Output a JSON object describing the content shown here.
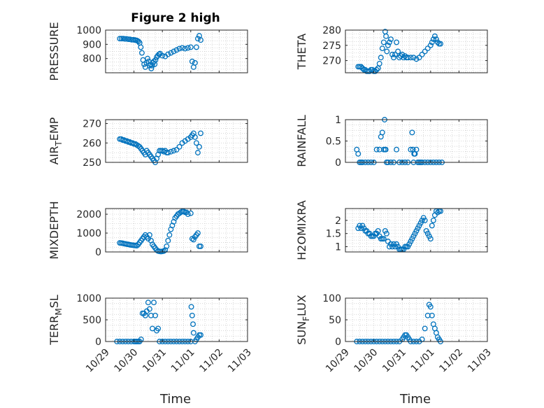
{
  "title": "Figure 2 high",
  "xlabel": "Time",
  "x_tick_labels": [
    "10/29",
    "10/30",
    "10/31",
    "11/01",
    "11/02",
    "11/03"
  ],
  "colors": {
    "marker": "#0072bd",
    "axis": "#262626",
    "grid": "#c8c8c8"
  },
  "chart_data": [
    {
      "type": "scatter",
      "ylabel": "PRESSURE",
      "ylim": [
        700,
        1000
      ],
      "yticks": [
        800,
        900,
        1000
      ],
      "ytick_labels": [
        "800",
        "900",
        "1000"
      ],
      "x": [
        0.5,
        0.56,
        0.62,
        0.68,
        0.74,
        0.8,
        0.86,
        0.92,
        0.98,
        1.04,
        1.08,
        1.12,
        1.16,
        1.2,
        1.24,
        1.28,
        1.32,
        1.36,
        1.4,
        1.44,
        1.48,
        1.52,
        1.55,
        1.58,
        1.61,
        1.64,
        1.67,
        1.7,
        1.73,
        1.76,
        1.8,
        1.84,
        1.88,
        1.92,
        2.0,
        2.1,
        2.2,
        2.3,
        2.4,
        2.5,
        2.6,
        2.7,
        2.8,
        2.9,
        3.0,
        3.05,
        3.1,
        3.15,
        3.2,
        3.25,
        3.3,
        3.35
      ],
      "y": [
        940,
        940,
        940,
        938,
        938,
        936,
        935,
        932,
        932,
        930,
        928,
        925,
        920,
        910,
        880,
        840,
        790,
        760,
        740,
        770,
        800,
        780,
        750,
        760,
        730,
        750,
        770,
        780,
        760,
        790,
        810,
        820,
        830,
        835,
        820,
        815,
        830,
        840,
        850,
        860,
        870,
        875,
        870,
        875,
        880,
        780,
        740,
        770,
        880,
        940,
        960,
        930
      ]
    },
    {
      "type": "scatter",
      "ylabel": "THETA",
      "ylim": [
        266,
        280
      ],
      "yticks": [
        270,
        275,
        280
      ],
      "ytick_labels": [
        "270",
        "275",
        "280"
      ],
      "x": [
        0.45,
        0.5,
        0.55,
        0.6,
        0.65,
        0.7,
        0.75,
        0.8,
        0.85,
        0.9,
        0.95,
        1.0,
        1.05,
        1.1,
        1.15,
        1.2,
        1.25,
        1.3,
        1.35,
        1.4,
        1.43,
        1.46,
        1.5,
        1.55,
        1.6,
        1.65,
        1.7,
        1.75,
        1.8,
        1.85,
        1.9,
        1.95,
        2.0,
        2.05,
        2.1,
        2.15,
        2.2,
        2.3,
        2.4,
        2.5,
        2.6,
        2.7,
        2.8,
        2.9,
        3.0,
        3.05,
        3.1,
        3.15,
        3.2,
        3.25,
        3.3,
        3.35
      ],
      "y": [
        268,
        268,
        268,
        267.5,
        267,
        267,
        266.5,
        266.5,
        266.5,
        267,
        267,
        266.5,
        266.5,
        267,
        267.5,
        269,
        271,
        274,
        276,
        279.5,
        278,
        273,
        275,
        276,
        277,
        272,
        271,
        272,
        276,
        273,
        271,
        271.5,
        272,
        271,
        271.5,
        271,
        271,
        271,
        271,
        270.5,
        271,
        272,
        273,
        274,
        275,
        276,
        277,
        278,
        277,
        276,
        275.5,
        275.5
      ]
    },
    {
      "type": "scatter",
      "ylabel": "AIR_T_EMP",
      "ylim": [
        250,
        272
      ],
      "yticks": [
        250,
        260,
        270
      ],
      "ytick_labels": [
        "250",
        "260",
        "270"
      ],
      "x": [
        0.5,
        0.55,
        0.6,
        0.65,
        0.7,
        0.75,
        0.8,
        0.85,
        0.9,
        0.95,
        1.0,
        1.05,
        1.1,
        1.15,
        1.2,
        1.25,
        1.3,
        1.35,
        1.4,
        1.45,
        1.5,
        1.55,
        1.6,
        1.65,
        1.7,
        1.75,
        1.8,
        1.85,
        1.9,
        1.95,
        2.0,
        2.05,
        2.1,
        2.15,
        2.2,
        2.3,
        2.4,
        2.5,
        2.6,
        2.7,
        2.8,
        2.9,
        3.0,
        3.05,
        3.1,
        3.15,
        3.2,
        3.25,
        3.3,
        3.35
      ],
      "y": [
        262,
        262,
        261.5,
        261.5,
        261,
        261,
        260.5,
        260.5,
        260,
        260,
        259.5,
        259.5,
        259,
        258.5,
        258,
        257,
        256,
        255,
        254,
        256,
        255,
        254,
        253,
        252,
        251,
        250,
        252,
        254,
        256,
        256,
        256,
        255.5,
        256,
        255,
        255,
        255.5,
        256,
        256.5,
        258,
        260,
        261,
        262,
        263,
        264,
        265,
        263,
        260,
        255,
        258,
        265
      ]
    },
    {
      "type": "scatter",
      "ylabel": "RAINFALL",
      "ylim": [
        0,
        1
      ],
      "yticks": [
        0,
        0.5,
        1
      ],
      "ytick_labels": [
        "0",
        "0.5",
        "1"
      ],
      "x": [
        0.4,
        0.45,
        0.5,
        0.55,
        0.6,
        0.7,
        0.8,
        0.9,
        1.0,
        1.1,
        1.2,
        1.25,
        1.3,
        1.35,
        1.38,
        1.4,
        1.42,
        1.45,
        1.5,
        1.6,
        1.7,
        1.8,
        1.9,
        2.0,
        2.1,
        2.2,
        2.3,
        2.35,
        2.38,
        2.4,
        2.42,
        2.45,
        2.5,
        2.55,
        2.6,
        2.65,
        2.7,
        2.8,
        2.9,
        3.0,
        3.1,
        3.2,
        3.3,
        3.4
      ],
      "y": [
        0.3,
        0.2,
        0,
        0,
        0,
        0,
        0,
        0,
        0,
        0.3,
        0.3,
        0.6,
        0.7,
        0.3,
        1,
        0.3,
        0.3,
        0,
        0,
        0,
        0,
        0.3,
        0,
        0,
        0,
        0,
        0.3,
        0.7,
        0.3,
        0,
        0.2,
        0.2,
        0.3,
        0,
        0,
        0,
        0,
        0,
        0,
        0,
        0,
        0,
        0,
        0
      ]
    },
    {
      "type": "scatter",
      "ylabel": "MIXDEPTH",
      "ylim": [
        0,
        2300
      ],
      "yticks": [
        0,
        1000,
        2000
      ],
      "ytick_labels": [
        "0",
        "1000",
        "2000"
      ],
      "x": [
        0.5,
        0.55,
        0.6,
        0.65,
        0.7,
        0.75,
        0.8,
        0.85,
        0.9,
        0.95,
        1.0,
        1.05,
        1.1,
        1.15,
        1.2,
        1.25,
        1.3,
        1.35,
        1.4,
        1.45,
        1.5,
        1.55,
        1.6,
        1.65,
        1.7,
        1.75,
        1.8,
        1.85,
        1.9,
        1.95,
        2.0,
        2.05,
        2.1,
        2.15,
        2.2,
        2.25,
        2.3,
        2.35,
        2.4,
        2.45,
        2.5,
        2.55,
        2.6,
        2.65,
        2.7,
        2.75,
        2.8,
        2.85,
        2.9,
        3.0,
        3.05,
        3.1,
        3.15,
        3.2,
        3.25,
        3.3,
        3.35
      ],
      "y": [
        480,
        470,
        460,
        440,
        430,
        410,
        400,
        380,
        370,
        360,
        350,
        340,
        330,
        400,
        500,
        600,
        700,
        800,
        900,
        800,
        700,
        900,
        600,
        400,
        300,
        200,
        100,
        50,
        30,
        20,
        30,
        50,
        100,
        300,
        600,
        900,
        1200,
        1400,
        1600,
        1800,
        1900,
        2000,
        2050,
        2100,
        2150,
        2150,
        2100,
        2100,
        2000,
        2050,
        700,
        650,
        800,
        900,
        1000,
        300,
        300
      ]
    },
    {
      "type": "scatter",
      "ylabel": "H2OMIXRA",
      "ylim": [
        0.8,
        2.45
      ],
      "yticks": [
        1,
        1.5,
        2
      ],
      "ytick_labels": [
        "1",
        "1.5",
        "2"
      ],
      "x": [
        0.45,
        0.5,
        0.55,
        0.6,
        0.65,
        0.7,
        0.75,
        0.8,
        0.85,
        0.9,
        0.95,
        1.0,
        1.05,
        1.1,
        1.15,
        1.2,
        1.25,
        1.3,
        1.35,
        1.4,
        1.45,
        1.5,
        1.55,
        1.6,
        1.65,
        1.7,
        1.75,
        1.8,
        1.85,
        1.9,
        1.95,
        2.0,
        2.05,
        2.1,
        2.15,
        2.2,
        2.25,
        2.3,
        2.35,
        2.4,
        2.45,
        2.5,
        2.55,
        2.6,
        2.65,
        2.7,
        2.75,
        2.8,
        2.85,
        2.9,
        2.95,
        3.0,
        3.05,
        3.1,
        3.15,
        3.2,
        3.25,
        3.3,
        3.35
      ],
      "y": [
        1.7,
        1.8,
        1.7,
        1.8,
        1.7,
        1.6,
        1.6,
        1.5,
        1.5,
        1.4,
        1.4,
        1.4,
        1.5,
        1.5,
        1.6,
        1.4,
        1.3,
        1.3,
        1.3,
        1.6,
        1.5,
        1.2,
        1.0,
        1.1,
        1.0,
        1.1,
        1.0,
        1.1,
        1.0,
        0.9,
        0.9,
        0.9,
        0.9,
        1.0,
        1.0,
        1.0,
        1.1,
        1.2,
        1.3,
        1.4,
        1.5,
        1.6,
        1.7,
        1.8,
        1.9,
        2.0,
        2.1,
        2.0,
        1.6,
        1.5,
        1.4,
        1.3,
        1.8,
        2.0,
        2.2,
        2.35,
        2.3,
        2.35,
        2.35
      ]
    },
    {
      "type": "scatter",
      "ylabel": "TERR_M_SL",
      "ylim": [
        0,
        1000
      ],
      "yticks": [
        0,
        500,
        1000
      ],
      "ytick_labels": [
        "0",
        "500",
        "1000"
      ],
      "x": [
        0.4,
        0.5,
        0.6,
        0.7,
        0.8,
        0.9,
        1.0,
        1.05,
        1.1,
        1.15,
        1.2,
        1.25,
        1.3,
        1.35,
        1.4,
        1.45,
        1.5,
        1.55,
        1.6,
        1.65,
        1.7,
        1.75,
        1.8,
        1.85,
        1.9,
        2.0,
        2.1,
        2.2,
        2.3,
        2.4,
        2.5,
        2.6,
        2.7,
        2.8,
        2.9,
        3.0,
        3.02,
        3.05,
        3.08,
        3.1,
        3.15,
        3.2,
        3.25,
        3.3,
        3.35
      ],
      "y": [
        0,
        0,
        0,
        0,
        0,
        0,
        0,
        0,
        0,
        0,
        0,
        50,
        650,
        650,
        600,
        700,
        900,
        750,
        600,
        300,
        900,
        600,
        250,
        300,
        0,
        0,
        0,
        0,
        0,
        0,
        0,
        0,
        0,
        0,
        0,
        0,
        800,
        600,
        400,
        200,
        0,
        50,
        100,
        150,
        150
      ]
    },
    {
      "type": "scatter",
      "ylabel": "SUN_F_LUX",
      "ylim": [
        0,
        100
      ],
      "yticks": [
        0,
        50,
        100
      ],
      "ytick_labels": [
        "0",
        "50",
        "100"
      ],
      "x": [
        0.4,
        0.5,
        0.6,
        0.7,
        0.8,
        0.9,
        1.0,
        1.1,
        1.2,
        1.3,
        1.4,
        1.5,
        1.6,
        1.7,
        1.8,
        1.9,
        2.0,
        2.05,
        2.1,
        2.15,
        2.2,
        2.25,
        2.3,
        2.4,
        2.5,
        2.6,
        2.7,
        2.8,
        2.9,
        2.95,
        3.0,
        3.05,
        3.1,
        3.15,
        3.2,
        3.25,
        3.3,
        3.35
      ],
      "y": [
        0,
        0,
        0,
        0,
        0,
        0,
        0,
        0,
        0,
        0,
        0,
        0,
        0,
        0,
        0,
        0,
        5,
        10,
        15,
        15,
        10,
        5,
        0,
        0,
        0,
        0,
        5,
        30,
        60,
        85,
        80,
        60,
        40,
        30,
        20,
        10,
        5,
        0
      ]
    }
  ]
}
